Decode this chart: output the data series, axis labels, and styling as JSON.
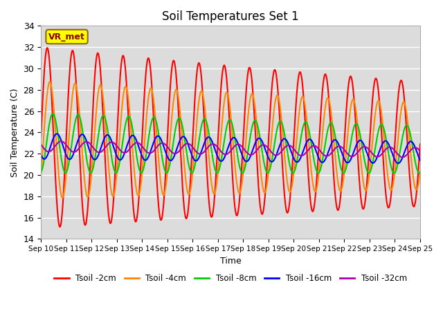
{
  "title": "Soil Temperatures Set 1",
  "xlabel": "Time",
  "ylabel": "Soil Temperature (C)",
  "ylim": [
    14,
    34
  ],
  "xlim": [
    0,
    15
  ],
  "background_color": "#dcdcdc",
  "annotation_text": "VR_met",
  "annotation_box_color": "#ffff00",
  "annotation_box_edge": "#8B6914",
  "series": [
    {
      "label": "Tsoil -2cm",
      "color": "#ff0000",
      "amp": 8.5,
      "base": 23.5,
      "phase": 0.0,
      "decay": 0.025,
      "period": 1.0,
      "lw": 1.5
    },
    {
      "label": "Tsoil -4cm",
      "color": "#ff8800",
      "amp": 5.5,
      "base": 23.3,
      "phase": 0.1,
      "decay": 0.02,
      "period": 1.0,
      "lw": 1.5
    },
    {
      "label": "Tsoil -8cm",
      "color": "#00cc00",
      "amp": 2.8,
      "base": 23.0,
      "phase": 0.22,
      "decay": 0.015,
      "period": 1.0,
      "lw": 1.5
    },
    {
      "label": "Tsoil -16cm",
      "color": "#0000ff",
      "amp": 1.2,
      "base": 22.7,
      "phase": 0.38,
      "decay": 0.01,
      "period": 1.0,
      "lw": 1.5
    },
    {
      "label": "Tsoil -32cm",
      "color": "#aa00aa",
      "amp": 0.5,
      "base": 22.7,
      "phase": 0.55,
      "decay": 0.005,
      "period": 1.0,
      "lw": 1.5
    }
  ],
  "xtick_labels": [
    "Sep 10",
    "Sep 11",
    "Sep 12",
    "Sep 13",
    "Sep 14",
    "Sep 15",
    "Sep 16",
    "Sep 17",
    "Sep 18",
    "Sep 19",
    "Sep 20",
    "Sep 21",
    "Sep 22",
    "Sep 23",
    "Sep 24",
    "Sep 25"
  ],
  "ytick_values": [
    14,
    16,
    18,
    20,
    22,
    24,
    26,
    28,
    30,
    32,
    34
  ]
}
